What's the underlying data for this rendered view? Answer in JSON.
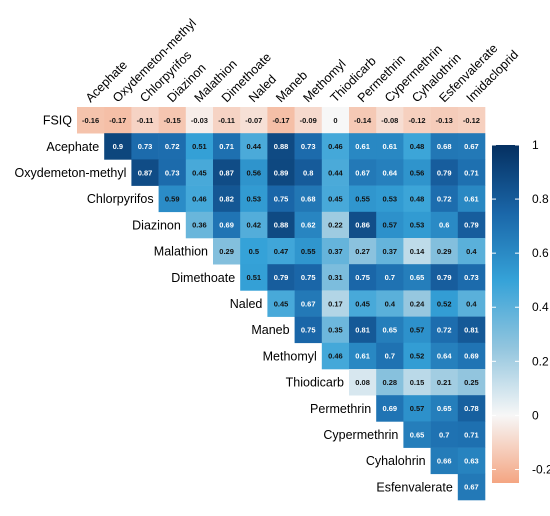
{
  "chart_data": {
    "type": "heatmap",
    "title": "",
    "column_labels": [
      "Acephate",
      "Oxydemeton-methyl",
      "Chlorpyrifos",
      "Diazinon",
      "Malathion",
      "Dimethoate",
      "Naled",
      "Maneb",
      "Methomyl",
      "Thiodicarb",
      "Permethrin",
      "Cypermethrin",
      "Cyhalothrin",
      "Esfenvalerate",
      "Imidacloprid"
    ],
    "row_labels": [
      "FSIQ",
      "Acephate",
      "Oxydemeton-methyl",
      "Chlorpyrifos",
      "Diazinon",
      "Malathion",
      "Dimethoate",
      "Naled",
      "Maneb",
      "Methomyl",
      "Thiodicarb",
      "Permethrin",
      "Cypermethrin",
      "Cyhalohrin",
      "Esfenvalerate"
    ],
    "rows": [
      {
        "label": "FSIQ",
        "start_col": 0,
        "values": [
          -0.16,
          -0.17,
          -0.11,
          -0.15,
          -0.03,
          -0.11,
          -0.07,
          -0.17,
          -0.09,
          0,
          -0.14,
          -0.08,
          -0.12,
          -0.13,
          -0.12
        ]
      },
      {
        "label": "Acephate",
        "start_col": 1,
        "values": [
          0.9,
          0.73,
          0.72,
          0.51,
          0.71,
          0.44,
          0.88,
          0.73,
          0.46,
          0.61,
          0.61,
          0.48,
          0.68,
          0.67
        ]
      },
      {
        "label": "Oxydemeton-methyl",
        "start_col": 2,
        "values": [
          0.87,
          0.73,
          0.45,
          0.87,
          0.56,
          0.89,
          0.8,
          0.44,
          0.67,
          0.64,
          0.56,
          0.79,
          0.71
        ]
      },
      {
        "label": "Chlorpyrifos",
        "start_col": 3,
        "values": [
          0.59,
          0.46,
          0.82,
          0.53,
          0.75,
          0.68,
          0.45,
          0.55,
          0.53,
          0.48,
          0.72,
          0.61
        ]
      },
      {
        "label": "Diazinon",
        "start_col": 4,
        "values": [
          0.36,
          0.69,
          0.42,
          0.88,
          0.62,
          0.22,
          0.86,
          0.57,
          0.53,
          0.6,
          0.79
        ]
      },
      {
        "label": "Malathion",
        "start_col": 5,
        "values": [
          0.29,
          0.5,
          0.47,
          0.55,
          0.37,
          0.27,
          0.37,
          0.14,
          0.29,
          0.4
        ]
      },
      {
        "label": "Dimethoate",
        "start_col": 6,
        "values": [
          0.51,
          0.79,
          0.75,
          0.31,
          0.75,
          0.7,
          0.65,
          0.79,
          0.73
        ]
      },
      {
        "label": "Naled",
        "start_col": 7,
        "values": [
          0.45,
          0.67,
          0.17,
          0.45,
          0.4,
          0.24,
          0.52,
          0.4
        ]
      },
      {
        "label": "Maneb",
        "start_col": 8,
        "values": [
          0.75,
          0.35,
          0.81,
          0.65,
          0.57,
          0.72,
          0.81
        ]
      },
      {
        "label": "Methomyl",
        "start_col": 9,
        "values": [
          0.46,
          0.61,
          0.7,
          0.52,
          0.64,
          0.69
        ]
      },
      {
        "label": "Thiodicarb",
        "start_col": 10,
        "values": [
          0.08,
          0.28,
          0.15,
          0.21,
          0.25
        ]
      },
      {
        "label": "Permethrin",
        "start_col": 11,
        "values": [
          0.69,
          0.57,
          0.65,
          0.78
        ]
      },
      {
        "label": "Cypermethrin",
        "start_col": 12,
        "values": [
          0.65,
          0.7,
          0.71
        ]
      },
      {
        "label": "Cyhalohrin",
        "start_col": 13,
        "values": [
          0.66,
          0.63
        ]
      },
      {
        "label": "Esfenvalerate",
        "start_col": 14,
        "values": [
          0.67
        ]
      }
    ],
    "colorbar": {
      "range": [
        -0.25,
        1
      ],
      "ticks": [
        -0.2,
        0,
        0.2,
        0.4,
        0.6,
        0.8,
        1
      ],
      "tick_labels": [
        "-0.2",
        "0",
        "0.2",
        "0.4",
        "0.6",
        "0.8",
        "1"
      ],
      "colors": {
        "negative": "#f4a582",
        "zero": "#f7f7f7",
        "low": "#92c5de",
        "mid": "#2196cf",
        "high": "#053061"
      }
    },
    "grid": false,
    "legend": "right"
  }
}
